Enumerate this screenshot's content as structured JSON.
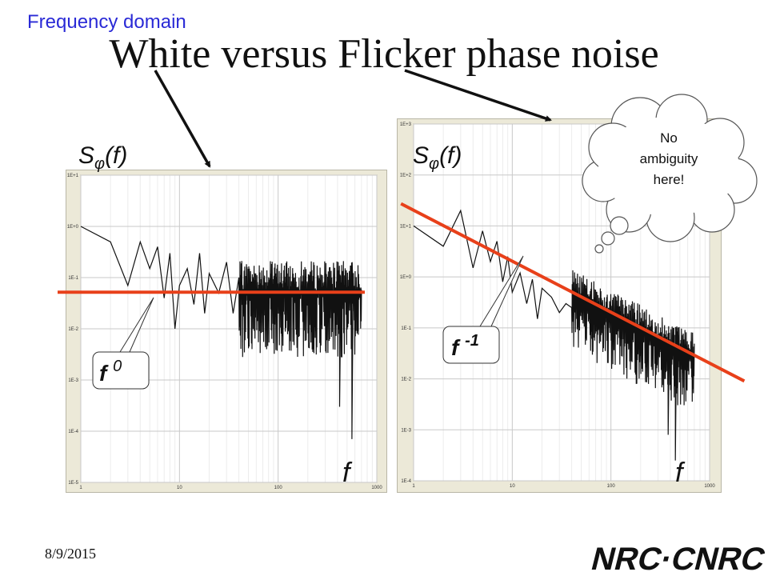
{
  "slide": {
    "topic": "Frequency domain",
    "title": "White versus Flicker phase noise",
    "date": "8/9/2015",
    "logo_text": "NRC·CNRC",
    "cloud_lines": [
      "No",
      "ambiguity",
      "here!"
    ]
  },
  "colors": {
    "fit_line": "#e8401a",
    "trace": "#111111",
    "panel_bg": "#ece9d8",
    "topic_text": "#2a2ad6"
  },
  "chart_data": [
    {
      "type": "line",
      "name": "white-phase-noise",
      "ylabel": "Sφ(f)",
      "xlabel": "f",
      "xscale": "log",
      "yscale": "log",
      "xlim": [
        1,
        1000
      ],
      "ylim": [
        1e-05,
        10
      ],
      "x_ticks": [
        "1",
        "10",
        "100",
        "1000"
      ],
      "y_ticks": [
        "1E+1",
        "1E+0",
        "1E-1",
        "1E-2",
        "1E-3",
        "1E-4",
        "1E-5"
      ],
      "grid": true,
      "fit_exponent": 0,
      "fit_label": "f",
      "fit_label_sup": "0",
      "fit_level": 0.05,
      "trace_points": [
        [
          1,
          1.0
        ],
        [
          2,
          0.5
        ],
        [
          3,
          0.07
        ],
        [
          4,
          0.5
        ],
        [
          5,
          0.15
        ],
        [
          6,
          0.4
        ],
        [
          7,
          0.04
        ],
        [
          8,
          0.3
        ],
        [
          9,
          0.01
        ],
        [
          10,
          0.07
        ],
        [
          12,
          0.15
        ],
        [
          14,
          0.03
        ],
        [
          16,
          0.3
        ],
        [
          18,
          0.02
        ],
        [
          20,
          0.12
        ],
        [
          25,
          0.05
        ],
        [
          30,
          0.2
        ],
        [
          35,
          0.02
        ],
        [
          40,
          0.1
        ]
      ],
      "noise_band": {
        "x_start": 40,
        "x_end": 700,
        "center": 0.055,
        "spread_decades": 1.3,
        "dips": [
          [
            420,
            0.0003
          ],
          [
            560,
            7e-05
          ]
        ]
      }
    },
    {
      "type": "line",
      "name": "flicker-phase-noise",
      "ylabel": "Sφ(f)",
      "xlabel": "f",
      "xscale": "log",
      "yscale": "log",
      "xlim": [
        1,
        1000
      ],
      "ylim": [
        0.0001,
        1000
      ],
      "x_ticks": [
        "1",
        "10",
        "100",
        "1000"
      ],
      "y_ticks": [
        "1E+3",
        "1E+2",
        "1E+1",
        "1E+0",
        "1E-1",
        "1E-2",
        "1E-3",
        "1E-4"
      ],
      "grid": true,
      "fit_exponent": -1,
      "fit_label": "f",
      "fit_label_sup": "-1",
      "fit_level_at_1": 20,
      "trace_points": [
        [
          1,
          10
        ],
        [
          2,
          4
        ],
        [
          3,
          20
        ],
        [
          4,
          1.5
        ],
        [
          5,
          8
        ],
        [
          6,
          2
        ],
        [
          7,
          5
        ],
        [
          8,
          0.8
        ],
        [
          9,
          2.5
        ],
        [
          10,
          0.5
        ],
        [
          12,
          1.2
        ],
        [
          14,
          0.3
        ],
        [
          16,
          0.9
        ],
        [
          18,
          0.15
        ],
        [
          20,
          0.6
        ],
        [
          25,
          0.4
        ],
        [
          30,
          0.2
        ],
        [
          35,
          0.3
        ],
        [
          40,
          0.25
        ]
      ],
      "noise_band": {
        "x_start": 40,
        "x_end": 700,
        "center": 0.08,
        "spread_decades": 1.1,
        "dips": [
          [
            380,
            0.0008
          ],
          [
            450,
            0.00025
          ]
        ]
      }
    }
  ]
}
